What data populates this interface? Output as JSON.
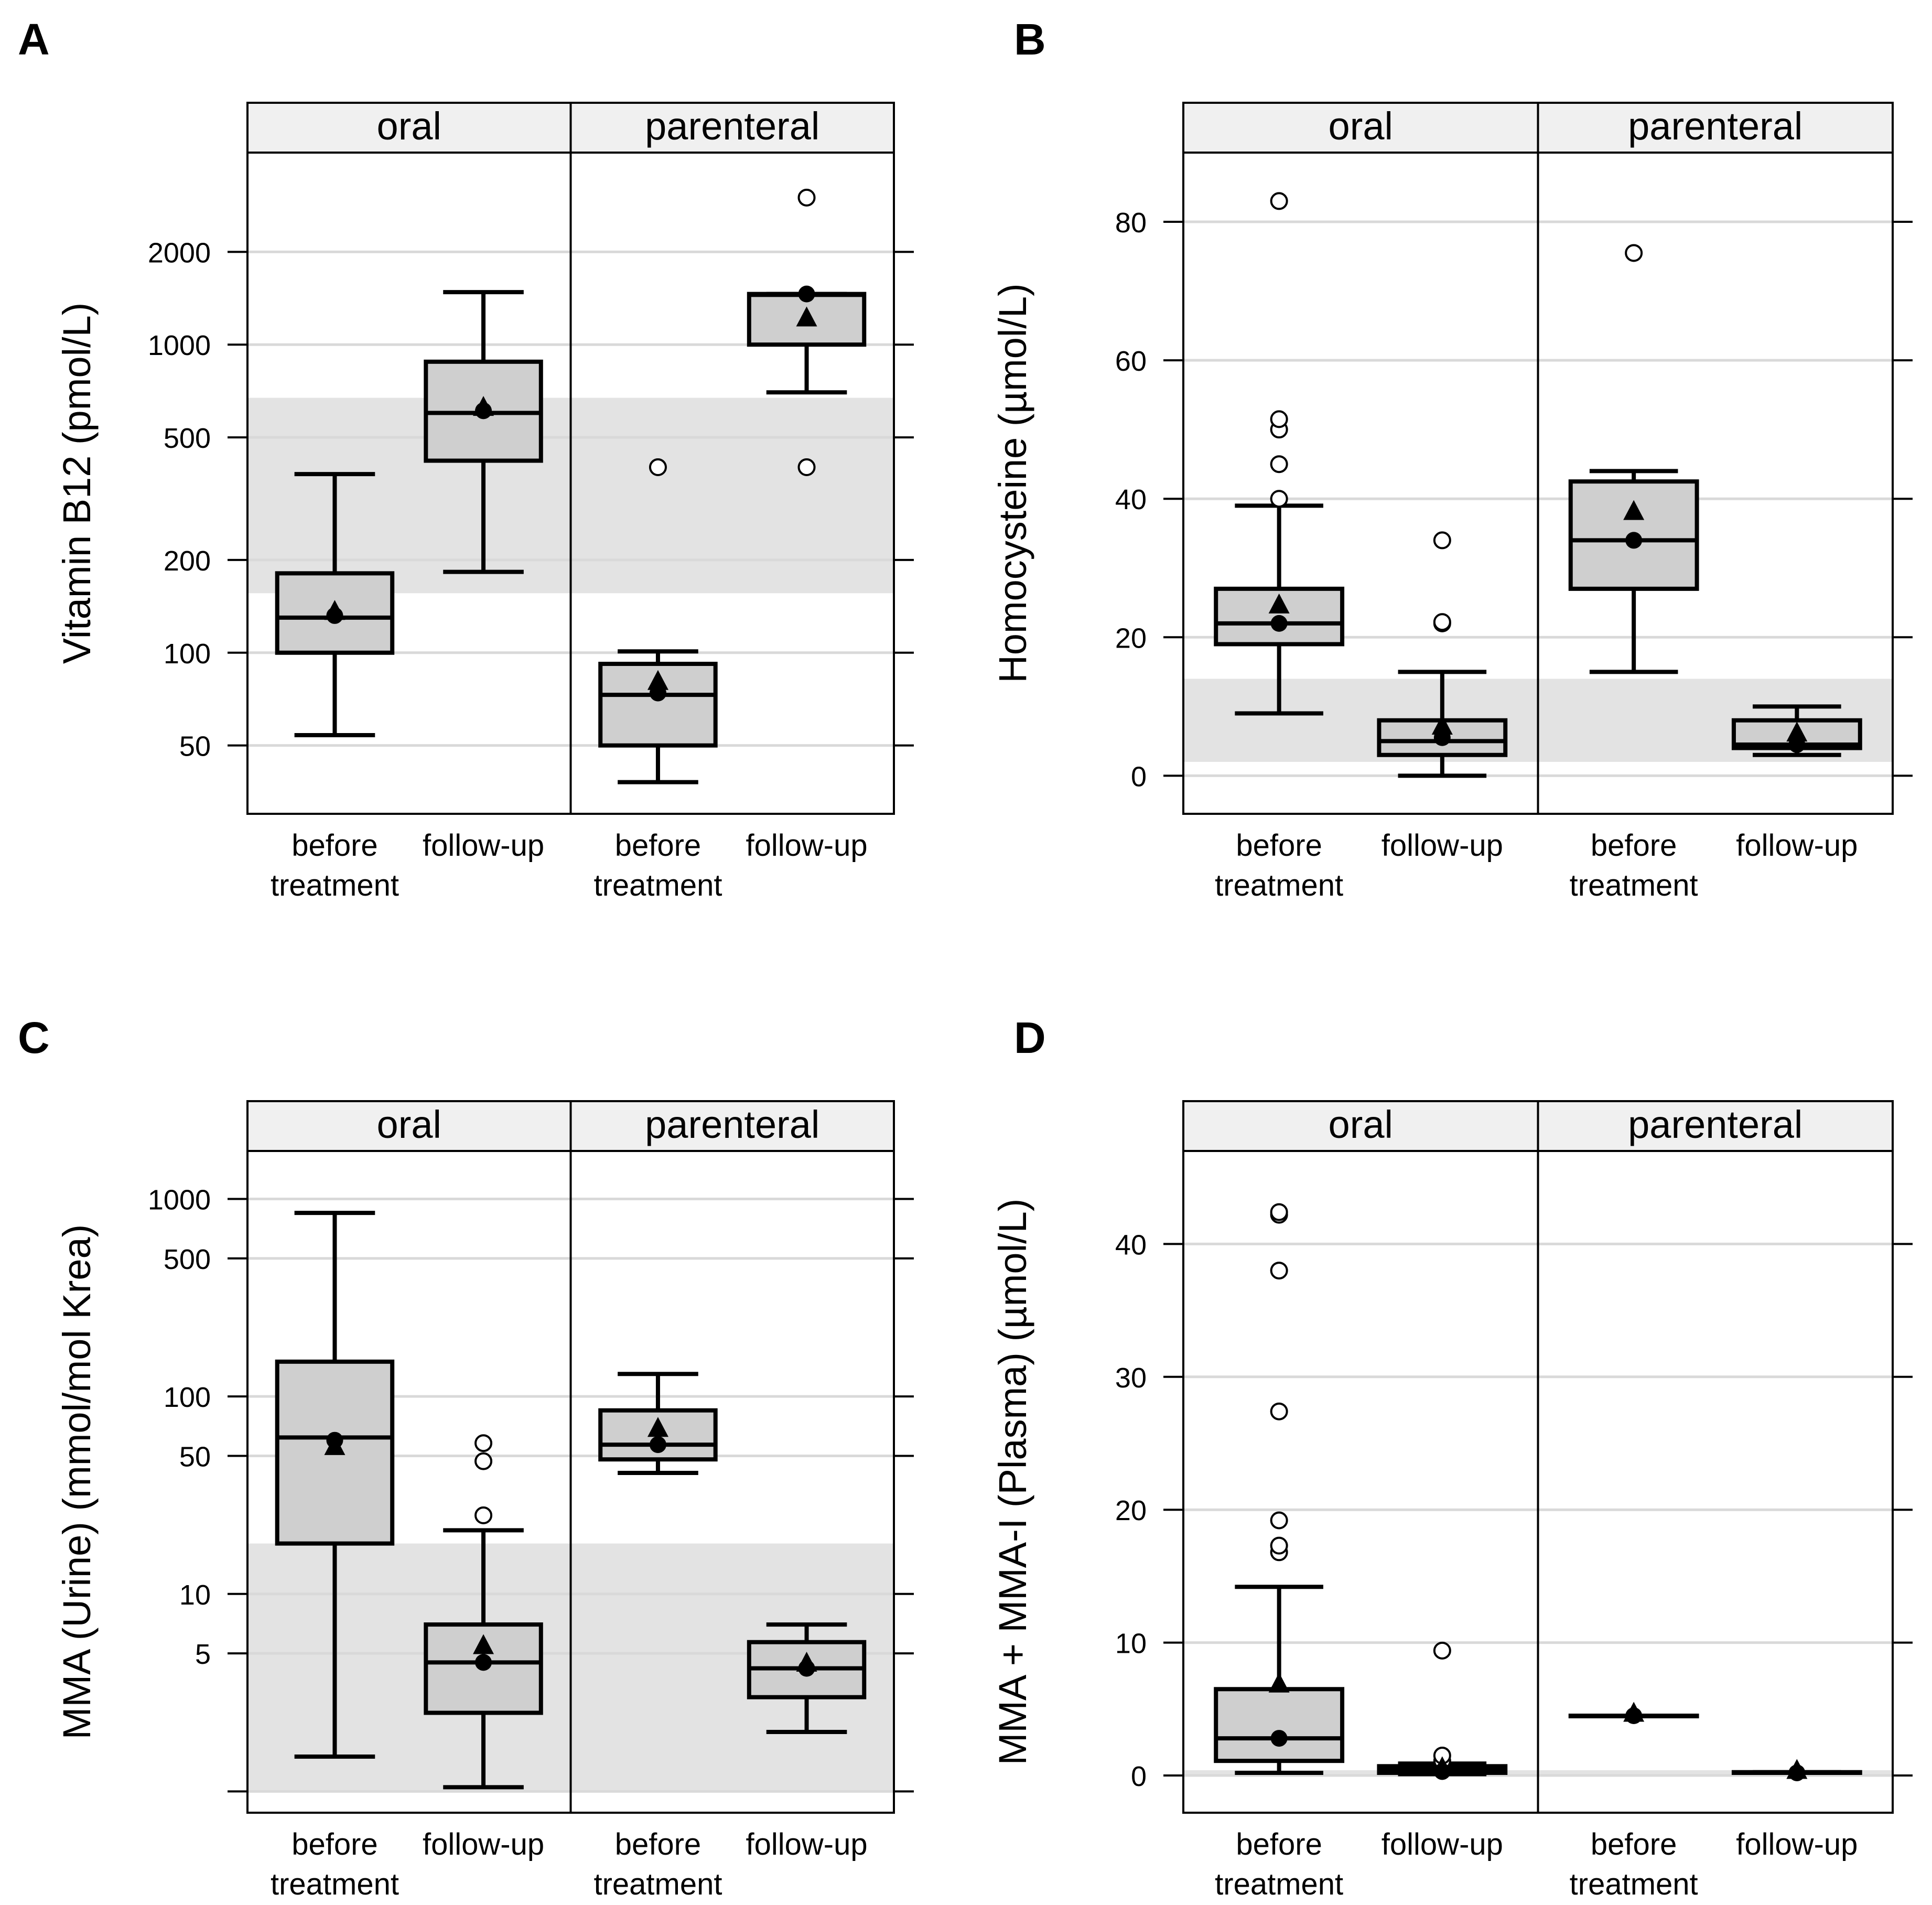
{
  "figure": {
    "panel_labels": [
      "A",
      "B",
      "C",
      "D"
    ],
    "colors": {
      "reference_band": "#e3e3e3",
      "strip": "#f0f0f0",
      "box_fill": "#cfcfcf",
      "gridline": "#d9d9d9",
      "stroke": "#000000"
    }
  },
  "chart_data": [
    {
      "panel": "A",
      "type": "box",
      "ylabel": "Vitamin B12 (pmol/L)",
      "yscale": "log",
      "ylim": [
        30,
        4200
      ],
      "yticks": [
        50,
        100,
        200,
        500,
        1000,
        2000
      ],
      "ytick_labels": [
        "50",
        "100",
        "200",
        "500",
        "1000",
        "2000"
      ],
      "reference_band": [
        156,
        672
      ],
      "facets": [
        "oral",
        "parenteral"
      ],
      "categories": [
        "before\ntreatment",
        "follow-up"
      ],
      "groups": [
        {
          "facet": "oral",
          "category": "before\ntreatment",
          "q1": 100,
          "median": 130,
          "q3": 181,
          "whisker_low": 54,
          "whisker_high": 380,
          "mean": 135,
          "geomean": 132,
          "outliers": []
        },
        {
          "facet": "oral",
          "category": "follow-up",
          "q1": 420,
          "median": 600,
          "q3": 880,
          "whisker_low": 183,
          "whisker_high": 1480,
          "mean": 620,
          "geomean": 610,
          "outliers": []
        },
        {
          "facet": "parenteral",
          "category": "before\ntreatment",
          "q1": 50,
          "median": 73,
          "q3": 92,
          "whisker_low": 38,
          "whisker_high": 101,
          "mean": 80,
          "geomean": 74,
          "outliers": [
            400
          ]
        },
        {
          "facet": "parenteral",
          "category": "follow-up",
          "q1": 1000,
          "median": 1450,
          "q3": 1460,
          "whisker_low": 700,
          "whisker_high": 1460,
          "mean": 1210,
          "geomean": 1460,
          "outliers": [
            400,
            3000
          ]
        }
      ]
    },
    {
      "panel": "B",
      "type": "box",
      "ylabel": "Homocysteine (µmol/L)",
      "yscale": "linear",
      "ylim": [
        -5.5,
        90
      ],
      "yticks": [
        0,
        20,
        40,
        60,
        80
      ],
      "ytick_labels": [
        "0",
        "20",
        "40",
        "60",
        "80"
      ],
      "reference_band": [
        2,
        14
      ],
      "facets": [
        "oral",
        "parenteral"
      ],
      "categories": [
        "before\ntreatment",
        "follow-up"
      ],
      "groups": [
        {
          "facet": "oral",
          "category": "before\ntreatment",
          "q1": 19,
          "median": 22,
          "q3": 27,
          "whisker_low": 9,
          "whisker_high": 39,
          "mean": 24.5,
          "geomean": 22,
          "outliers": [
            40,
            45,
            50,
            51.5,
            83
          ]
        },
        {
          "facet": "oral",
          "category": "follow-up",
          "q1": 3,
          "median": 5,
          "q3": 8,
          "whisker_low": 0,
          "whisker_high": 15,
          "mean": 7,
          "geomean": 5.5,
          "outliers": [
            22,
            22.2,
            34
          ]
        },
        {
          "facet": "parenteral",
          "category": "before\ntreatment",
          "q1": 27,
          "median": 34,
          "q3": 42.5,
          "whisker_low": 15,
          "whisker_high": 44,
          "mean": 38,
          "geomean": 34,
          "outliers": [
            75.5
          ]
        },
        {
          "facet": "parenteral",
          "category": "follow-up",
          "q1": 4,
          "median": 4.5,
          "q3": 8,
          "whisker_low": 3,
          "whisker_high": 10,
          "mean": 6,
          "geomean": 4.5,
          "outliers": []
        }
      ]
    },
    {
      "panel": "C",
      "type": "box",
      "ylabel": "MMA (Urine) (mmol/mol Krea)",
      "yscale": "log",
      "ylim": [
        0.78,
        1750
      ],
      "yticks": [
        1,
        5,
        10,
        50,
        100,
        500,
        1000
      ],
      "ytick_labels": [
        "",
        "5",
        "10",
        "50",
        "100",
        "500",
        "1000"
      ],
      "reference_band": [
        1,
        18
      ],
      "facets": [
        "oral",
        "parenteral"
      ],
      "categories": [
        "before\ntreatment",
        "follow-up"
      ],
      "groups": [
        {
          "facet": "oral",
          "category": "before\ntreatment",
          "q1": 18,
          "median": 62,
          "q3": 150,
          "whisker_low": 1.5,
          "whisker_high": 850,
          "mean": 55,
          "geomean": 60,
          "outliers": []
        },
        {
          "facet": "oral",
          "category": "follow-up",
          "q1": 2.5,
          "median": 4.5,
          "q3": 7,
          "whisker_low": 1.05,
          "whisker_high": 21,
          "mean": 5.4,
          "geomean": 4.5,
          "outliers": [
            25,
            47,
            58
          ]
        },
        {
          "facet": "parenteral",
          "category": "before\ntreatment",
          "q1": 48,
          "median": 57,
          "q3": 85,
          "whisker_low": 41,
          "whisker_high": 130,
          "mean": 68,
          "geomean": 57,
          "outliers": []
        },
        {
          "facet": "parenteral",
          "category": "follow-up",
          "q1": 3,
          "median": 4.2,
          "q3": 5.7,
          "whisker_low": 2,
          "whisker_high": 7,
          "mean": 4.4,
          "geomean": 4.2,
          "outliers": []
        }
      ]
    },
    {
      "panel": "D",
      "type": "box",
      "ylabel": "MMA + MMA-I (Plasma) (µmol/L)",
      "yscale": "linear",
      "ylim": [
        -2.8,
        47
      ],
      "yticks": [
        0,
        10,
        20,
        30,
        40
      ],
      "ytick_labels": [
        "0",
        "10",
        "20",
        "30",
        "40"
      ],
      "reference_band": [
        0,
        0.4
      ],
      "facets": [
        "oral",
        "parenteral"
      ],
      "categories": [
        "before\ntreatment",
        "follow-up"
      ],
      "groups": [
        {
          "facet": "oral",
          "category": "before\ntreatment",
          "q1": 1.1,
          "median": 2.8,
          "q3": 6.5,
          "whisker_low": 0.2,
          "whisker_high": 14.2,
          "mean": 6.8,
          "geomean": 2.8,
          "outliers": [
            16.8,
            17.3,
            19.2,
            27.4,
            38,
            42.2,
            42.4
          ]
        },
        {
          "facet": "oral",
          "category": "follow-up",
          "q1": 0.2,
          "median": 0.4,
          "q3": 0.7,
          "whisker_low": 0.1,
          "whisker_high": 0.9,
          "mean": 0.5,
          "geomean": 0.3,
          "outliers": [
            1.1,
            1.5,
            9.4
          ]
        },
        {
          "facet": "parenteral",
          "category": "before\ntreatment",
          "q1": 4.5,
          "median": 4.5,
          "q3": 4.5,
          "whisker_low": 4.5,
          "whisker_high": 4.5,
          "mean": 4.6,
          "geomean": 4.5,
          "outliers": []
        },
        {
          "facet": "parenteral",
          "category": "follow-up",
          "q1": 0.2,
          "median": 0.2,
          "q3": 0.25,
          "whisker_low": 0.2,
          "whisker_high": 0.25,
          "mean": 0.3,
          "geomean": 0.2,
          "outliers": []
        }
      ]
    }
  ]
}
